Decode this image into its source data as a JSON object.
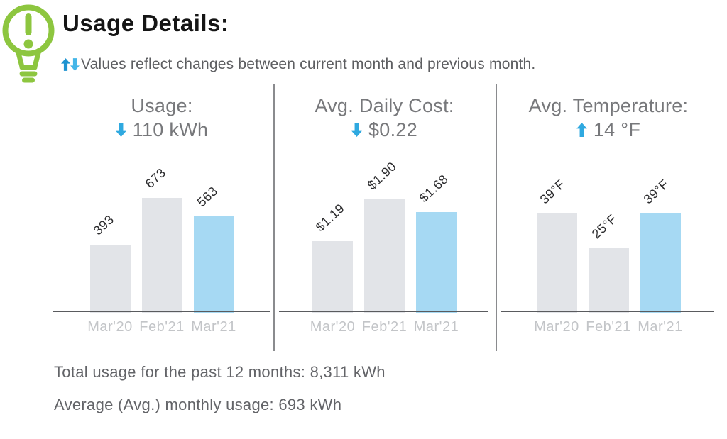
{
  "header": {
    "title": "Usage Details:",
    "subtitle": "Values reflect changes between current month and previous month."
  },
  "icons": {
    "bulb": "lightbulb-alert-icon",
    "subtitle_arrows": [
      "up-arrow-icon",
      "down-arrow-icon"
    ]
  },
  "colors": {
    "green": "#8dc63f",
    "arrow_up": "#1e93d0",
    "arrow_down": "#44b6e8",
    "delta_arrow": "#2fa9e0",
    "bar_gray": "#e2e4e8",
    "bar_blue": "#a6d9f3",
    "axis": "#5a5b5e",
    "divider": "#8a8b8e",
    "title_text": "#151515",
    "subtitle_text": "#5d5e61",
    "panel_text": "#77787b",
    "bar_label_text": "#2b2b2d",
    "month_text": "#c3c5c8"
  },
  "chart_data": [
    {
      "type": "bar",
      "title": "Usage:",
      "delta": {
        "direction": "down",
        "label": "110 kWh"
      },
      "categories": [
        "Mar'20",
        "Feb'21",
        "Mar'21"
      ],
      "values": [
        393,
        673,
        563
      ],
      "value_labels": [
        "393",
        "673",
        "563"
      ],
      "ylim": [
        0,
        673
      ],
      "highlight_index": 2,
      "legend": "none",
      "grid": false
    },
    {
      "type": "bar",
      "title": "Avg. Daily Cost:",
      "delta": {
        "direction": "down",
        "label": "$0.22"
      },
      "categories": [
        "Mar'20",
        "Feb'21",
        "Mar'21"
      ],
      "values": [
        1.19,
        1.9,
        1.68
      ],
      "value_labels": [
        "$1.19",
        "$1.90",
        "$1.68"
      ],
      "ylim": [
        0,
        1.9
      ],
      "highlight_index": 2,
      "legend": "none",
      "grid": false
    },
    {
      "type": "bar",
      "title": "Avg. Temperature:",
      "delta": {
        "direction": "up",
        "label": "14 °F"
      },
      "categories": [
        "Mar'20",
        "Feb'21",
        "Mar'21"
      ],
      "values": [
        39,
        25,
        39
      ],
      "value_labels": [
        "39°F",
        "25°F",
        "39°F"
      ],
      "ylim": [
        0,
        39
      ],
      "highlight_index": 2,
      "legend": "none",
      "grid": false
    }
  ],
  "footer": {
    "line1": "Total usage for the past 12 months: 8,311 kWh",
    "line2": "Average (Avg.) monthly usage: 693 kWh"
  }
}
